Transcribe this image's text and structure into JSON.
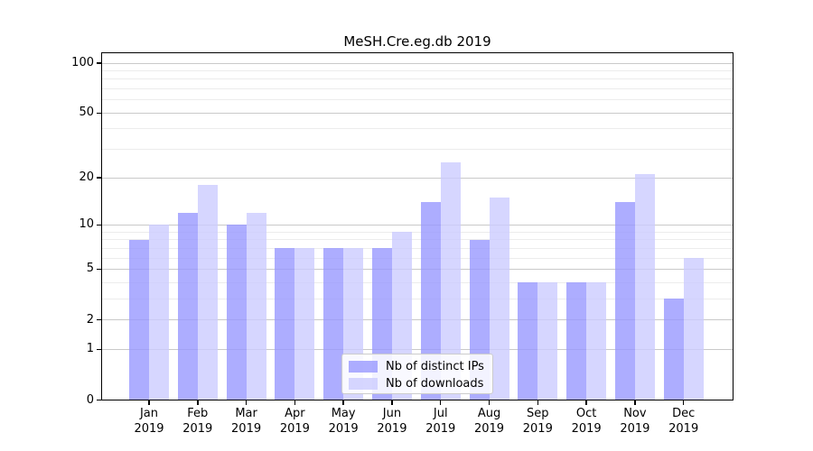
{
  "chart_data": {
    "type": "bar",
    "title": "MeSH.Cre.eg.db 2019",
    "categories": [
      "Jan",
      "Feb",
      "Mar",
      "Apr",
      "May",
      "Jun",
      "Jul",
      "Aug",
      "Sep",
      "Oct",
      "Nov",
      "Dec"
    ],
    "x_year_label": "2019",
    "series": [
      {
        "key": "distinct-ips",
        "name": "Nb of distinct IPs",
        "color": "#9999ff",
        "alpha": 0.8,
        "values": [
          8,
          12,
          10,
          7,
          7,
          7,
          14,
          8,
          4,
          4,
          14,
          3
        ]
      },
      {
        "key": "downloads",
        "name": "Nb of downloads",
        "color": "#ccccff",
        "alpha": 0.8,
        "values": [
          10,
          18,
          12,
          7,
          7,
          9,
          25,
          15,
          4,
          4,
          21,
          6
        ]
      }
    ],
    "yscale": "log1p",
    "ylim": [
      0,
      114
    ],
    "y_major_ticks": [
      0,
      1,
      2,
      5,
      10,
      20,
      50,
      100
    ],
    "y_minor_ticks": [
      3,
      4,
      6,
      7,
      8,
      9,
      30,
      40,
      60,
      70,
      80,
      90
    ],
    "grid": true,
    "legend_position": "lower-center-inside"
  },
  "colors": {
    "grid_major": "#c9c9c9",
    "grid_minor": "#ececec",
    "axis": "#000000",
    "background": "#ffffff",
    "legend_border": "#cccccc"
  }
}
